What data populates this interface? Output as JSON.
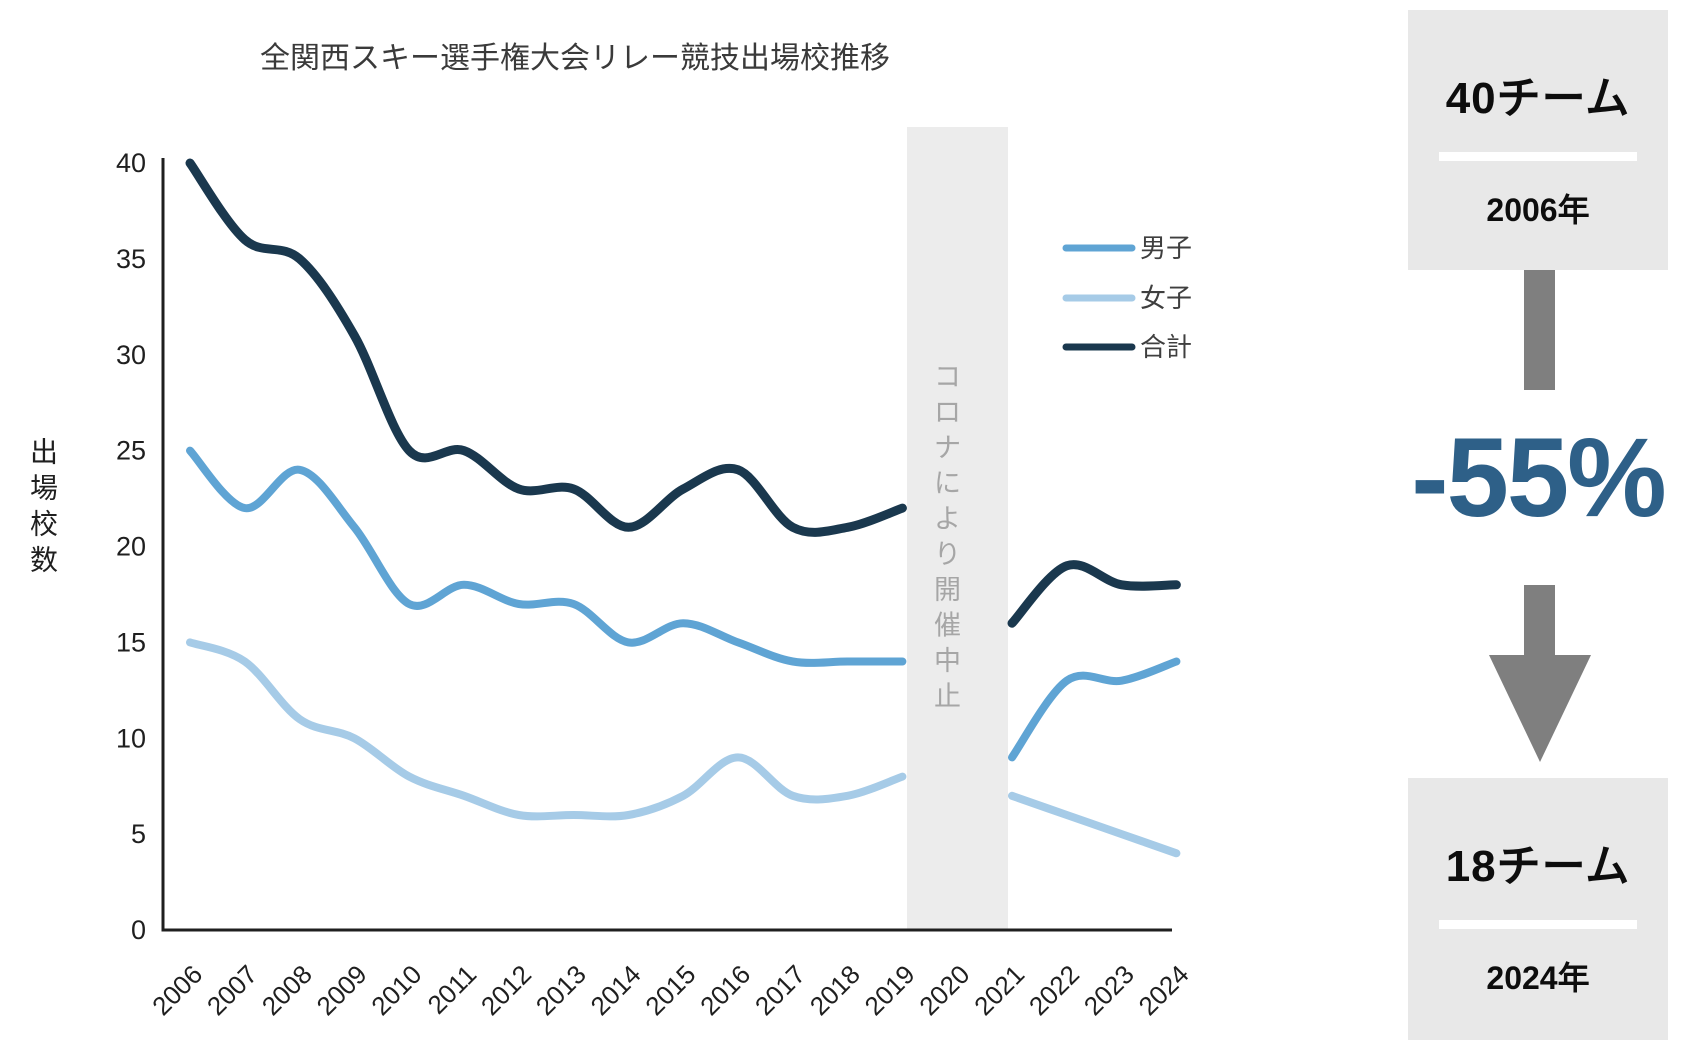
{
  "title": "全関西スキー選手権大会リレー競技出場校推移",
  "band_label": "コロナにより開催中止",
  "y_axis_title": "出場校数",
  "colors": {
    "men_line": "#5fa4d4",
    "women_line": "#a6cbe7",
    "total_line": "#1a384e",
    "band_fill": "#ececec",
    "band_text": "#a6a6a6",
    "axis": "#1f1f1f",
    "tick_text": "#1f1f1f",
    "title_text": "#3a3a3a",
    "legend_text": "#3f3f3f",
    "panel_box": "#e8e8e8",
    "panel_arrow": "#7f7f7f",
    "panel_accent": "#2e6088"
  },
  "chart_data": {
    "type": "line",
    "title": "全関西スキー選手権大会リレー競技出場校推移",
    "xlabel": "",
    "ylabel": "出場校数",
    "ylim": [
      0,
      40
    ],
    "yticks": [
      0,
      5,
      10,
      15,
      20,
      25,
      30,
      35,
      40
    ],
    "grid": false,
    "legend_position": "right-top",
    "categories": [
      "2006",
      "2007",
      "2008",
      "2009",
      "2010",
      "2011",
      "2012",
      "2013",
      "2014",
      "2015",
      "2016",
      "2017",
      "2018",
      "2019",
      "2020",
      "2021",
      "2022",
      "2023",
      "2024"
    ],
    "series": [
      {
        "name": "男子",
        "key": "men",
        "color": "#5fa4d4",
        "width": 8,
        "values": [
          25,
          22,
          24,
          21,
          17,
          18,
          17,
          17,
          15,
          16,
          15,
          14,
          14,
          14,
          null,
          9,
          13,
          13,
          14
        ]
      },
      {
        "name": "女子",
        "key": "women",
        "color": "#a6cbe7",
        "width": 8,
        "values": [
          15,
          14,
          11,
          10,
          8,
          7,
          6,
          6,
          6,
          7,
          9,
          7,
          7,
          8,
          null,
          7,
          6,
          5,
          4
        ]
      },
      {
        "name": "合計",
        "key": "total",
        "color": "#1a384e",
        "width": 9,
        "values": [
          40,
          36,
          35,
          31,
          25,
          25,
          23,
          23,
          21,
          23,
          24,
          21,
          21,
          22,
          null,
          16,
          19,
          18,
          18
        ]
      }
    ],
    "annotation": {
      "text": "コロナにより開催中止",
      "year": "2020",
      "note": "gray band, no data in 2020"
    }
  },
  "side_panel": {
    "start": {
      "value": "40チーム",
      "year": "2006年"
    },
    "change": "-55%",
    "end": {
      "value": "18チーム",
      "year": "2024年"
    }
  }
}
